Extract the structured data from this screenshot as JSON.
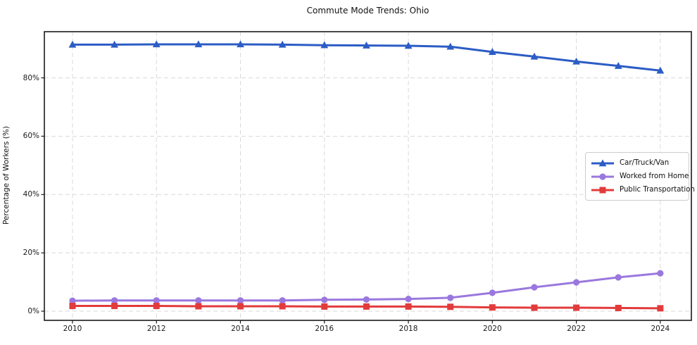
{
  "title": "Commute Mode Trends: Ohio",
  "chart_data": {
    "type": "line",
    "title": "Commute Mode Trends: Ohio",
    "xlabel": "",
    "ylabel": "Percentage of Workers (%)",
    "x": [
      2010,
      2011,
      2012,
      2013,
      2014,
      2015,
      2016,
      2017,
      2018,
      2019,
      2020,
      2021,
      2022,
      2023,
      2024
    ],
    "series": [
      {
        "name": "Car/Truck/Van",
        "color": "#2c5cc5",
        "marker": "triangle",
        "values": [
          91.4,
          91.4,
          91.5,
          91.5,
          91.5,
          91.4,
          91.2,
          91.1,
          91.0,
          90.7,
          88.9,
          87.3,
          85.6,
          84.1,
          82.5
        ]
      },
      {
        "name": "Worked from Home",
        "color": "#9a78de",
        "marker": "circle",
        "values": [
          3.6,
          3.7,
          3.7,
          3.7,
          3.7,
          3.7,
          3.9,
          4.0,
          4.2,
          4.6,
          6.3,
          8.2,
          9.9,
          11.6,
          13.0
        ]
      },
      {
        "name": "Public Transportation",
        "color": "#e23b3b",
        "marker": "square",
        "values": [
          1.8,
          1.8,
          1.8,
          1.7,
          1.7,
          1.7,
          1.6,
          1.6,
          1.6,
          1.5,
          1.3,
          1.2,
          1.2,
          1.1,
          1.0
        ]
      }
    ],
    "xticks": [
      2010,
      2012,
      2014,
      2016,
      2018,
      2020,
      2022,
      2024
    ],
    "yticks": [
      0,
      20,
      40,
      60,
      80
    ],
    "ytick_suffix": "%",
    "xlim": [
      2009.33,
      2024.74
    ],
    "ylim": [
      -3.14,
      95.84
    ],
    "grid": true,
    "legend_position": "right-middle"
  },
  "colors": {
    "axis": "#1a1a1a",
    "grid": "#d9d9d9",
    "background": "#ffffff",
    "legend_border": "#cccccc"
  }
}
